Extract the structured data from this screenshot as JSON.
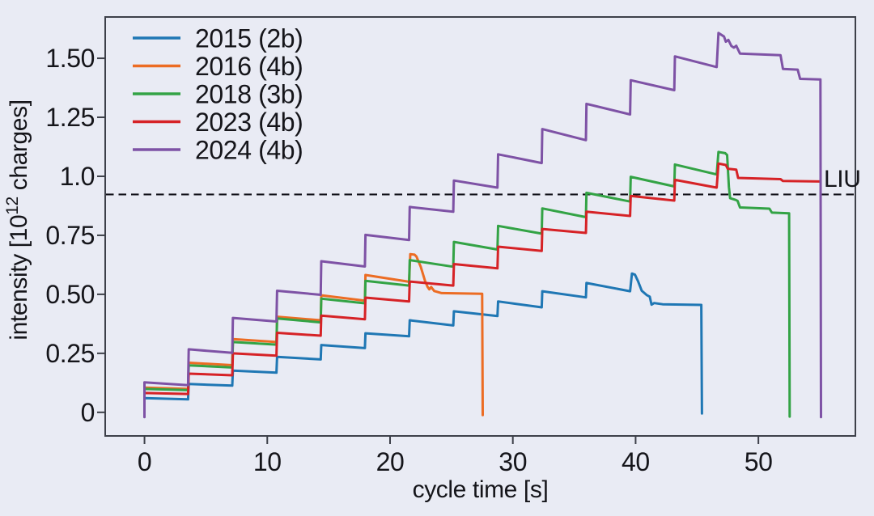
{
  "figure": {
    "background_color": "#e9ebf4",
    "spine_color": "#3d4049",
    "text_color": "#15151a"
  },
  "chart_data": {
    "type": "line",
    "title": "",
    "xlabel": "cycle time [s]",
    "ylabel_prefix": "intensity [10",
    "ylabel_superscript": "12",
    "ylabel_suffix": " charges]",
    "xlim": [
      -3.2,
      57.9
    ],
    "ylim": [
      -0.1,
      1.675
    ],
    "grid": false,
    "legend_position": "upper-left",
    "xticks": [
      {
        "v": 0,
        "label": "0"
      },
      {
        "v": 10,
        "label": "10"
      },
      {
        "v": 20,
        "label": "20"
      },
      {
        "v": 30,
        "label": "30"
      },
      {
        "v": 40,
        "label": "40"
      },
      {
        "v": 50,
        "label": "50"
      }
    ],
    "yticks": [
      {
        "v": 0.0,
        "label": "0"
      },
      {
        "v": 0.25,
        "label": "0.25"
      },
      {
        "v": 0.5,
        "label": "0.50"
      },
      {
        "v": 0.75,
        "label": "0.75"
      },
      {
        "v": 1.0,
        "label": "1.0"
      },
      {
        "v": 1.25,
        "label": "1.25"
      },
      {
        "v": 1.5,
        "label": "1.50"
      }
    ],
    "annotation": {
      "label": "LIU",
      "y": 0.923,
      "style": "dashed",
      "color": "#111118"
    },
    "series": [
      {
        "name": "2015 (2b)",
        "color": "#1f77b4",
        "points": [
          [
            0,
            -0.005
          ],
          [
            0,
            0.06
          ],
          [
            3.55,
            0.055
          ],
          [
            3.6,
            0.12
          ],
          [
            7.15,
            0.113
          ],
          [
            7.2,
            0.177
          ],
          [
            10.75,
            0.168
          ],
          [
            10.8,
            0.235
          ],
          [
            14.35,
            0.224
          ],
          [
            14.4,
            0.285
          ],
          [
            17.95,
            0.272
          ],
          [
            18.0,
            0.335
          ],
          [
            21.55,
            0.322
          ],
          [
            21.6,
            0.39
          ],
          [
            25.15,
            0.368
          ],
          [
            25.2,
            0.428
          ],
          [
            28.75,
            0.408
          ],
          [
            28.8,
            0.47
          ],
          [
            32.35,
            0.445
          ],
          [
            32.4,
            0.513
          ],
          [
            35.95,
            0.487
          ],
          [
            36.0,
            0.548
          ],
          [
            39.55,
            0.513
          ],
          [
            39.7,
            0.588
          ],
          [
            39.95,
            0.583
          ],
          [
            40.2,
            0.555
          ],
          [
            40.5,
            0.515
          ],
          [
            40.9,
            0.497
          ],
          [
            41.15,
            0.49
          ],
          [
            41.3,
            0.456
          ],
          [
            41.5,
            0.463
          ],
          [
            42.2,
            0.458
          ],
          [
            45.35,
            0.455
          ],
          [
            45.4,
            -0.005
          ]
        ]
      },
      {
        "name": "2016 (4b)",
        "color": "#ec6c23",
        "points": [
          [
            0,
            -0.005
          ],
          [
            0,
            0.105
          ],
          [
            3.55,
            0.099
          ],
          [
            3.6,
            0.21
          ],
          [
            7.15,
            0.2
          ],
          [
            7.2,
            0.31
          ],
          [
            10.75,
            0.298
          ],
          [
            10.8,
            0.405
          ],
          [
            14.35,
            0.39
          ],
          [
            14.4,
            0.496
          ],
          [
            17.95,
            0.473
          ],
          [
            18.0,
            0.582
          ],
          [
            21.55,
            0.553
          ],
          [
            21.65,
            0.67
          ],
          [
            22.0,
            0.668
          ],
          [
            22.15,
            0.66
          ],
          [
            22.5,
            0.617
          ],
          [
            22.85,
            0.557
          ],
          [
            23.05,
            0.532
          ],
          [
            23.2,
            0.521
          ],
          [
            23.35,
            0.531
          ],
          [
            23.6,
            0.514
          ],
          [
            24.2,
            0.505
          ],
          [
            27.5,
            0.502
          ],
          [
            27.55,
            -0.012
          ]
        ]
      },
      {
        "name": "2018 (3b)",
        "color": "#33a345",
        "points": [
          [
            0,
            -0.015
          ],
          [
            0,
            0.099
          ],
          [
            3.55,
            0.094
          ],
          [
            3.6,
            0.199
          ],
          [
            7.15,
            0.19
          ],
          [
            7.2,
            0.298
          ],
          [
            10.75,
            0.287
          ],
          [
            10.8,
            0.398
          ],
          [
            14.35,
            0.381
          ],
          [
            14.4,
            0.482
          ],
          [
            17.95,
            0.462
          ],
          [
            18.0,
            0.557
          ],
          [
            21.55,
            0.537
          ],
          [
            21.6,
            0.645
          ],
          [
            25.15,
            0.617
          ],
          [
            25.2,
            0.722
          ],
          [
            28.75,
            0.69
          ],
          [
            28.8,
            0.79
          ],
          [
            32.35,
            0.757
          ],
          [
            32.4,
            0.864
          ],
          [
            35.95,
            0.827
          ],
          [
            36.0,
            0.93
          ],
          [
            39.55,
            0.893
          ],
          [
            39.6,
            0.998
          ],
          [
            43.15,
            0.957
          ],
          [
            43.2,
            1.05
          ],
          [
            46.6,
            1.008
          ],
          [
            46.75,
            1.103
          ],
          [
            47.3,
            1.098
          ],
          [
            47.45,
            1.09
          ],
          [
            47.6,
            0.955
          ],
          [
            47.7,
            0.907
          ],
          [
            48.15,
            0.9
          ],
          [
            48.3,
            0.896
          ],
          [
            48.5,
            0.868
          ],
          [
            50.9,
            0.863
          ],
          [
            51.1,
            0.846
          ],
          [
            52.5,
            0.843
          ],
          [
            52.55,
            -0.018
          ]
        ]
      },
      {
        "name": "2023 (4b)",
        "color": "#d62226",
        "points": [
          [
            0,
            -0.005
          ],
          [
            0,
            0.082
          ],
          [
            3.55,
            0.078
          ],
          [
            3.6,
            0.164
          ],
          [
            7.15,
            0.157
          ],
          [
            7.2,
            0.25
          ],
          [
            10.75,
            0.24
          ],
          [
            10.8,
            0.337
          ],
          [
            14.35,
            0.325
          ],
          [
            14.4,
            0.41
          ],
          [
            17.95,
            0.394
          ],
          [
            18.0,
            0.486
          ],
          [
            21.55,
            0.47
          ],
          [
            21.6,
            0.554
          ],
          [
            25.15,
            0.537
          ],
          [
            25.2,
            0.628
          ],
          [
            28.75,
            0.61
          ],
          [
            28.8,
            0.702
          ],
          [
            32.35,
            0.684
          ],
          [
            32.4,
            0.777
          ],
          [
            35.95,
            0.76
          ],
          [
            36.0,
            0.85
          ],
          [
            39.55,
            0.832
          ],
          [
            39.6,
            0.917
          ],
          [
            43.15,
            0.897
          ],
          [
            43.2,
            0.985
          ],
          [
            46.6,
            0.952
          ],
          [
            46.75,
            1.054
          ],
          [
            47.35,
            1.048
          ],
          [
            47.5,
            1.032
          ],
          [
            48.2,
            1.028
          ],
          [
            48.35,
            0.993
          ],
          [
            51.8,
            0.988
          ],
          [
            52.0,
            0.98
          ],
          [
            55.0,
            0.978
          ]
        ]
      },
      {
        "name": "2024 (4b)",
        "color": "#7e52a5",
        "points": [
          [
            0,
            -0.02
          ],
          [
            0,
            0.127
          ],
          [
            3.55,
            0.115
          ],
          [
            3.6,
            0.267
          ],
          [
            7.15,
            0.252
          ],
          [
            7.2,
            0.4
          ],
          [
            10.75,
            0.385
          ],
          [
            10.8,
            0.515
          ],
          [
            14.35,
            0.498
          ],
          [
            14.4,
            0.64
          ],
          [
            17.95,
            0.618
          ],
          [
            18.0,
            0.752
          ],
          [
            21.55,
            0.73
          ],
          [
            21.6,
            0.87
          ],
          [
            25.15,
            0.85
          ],
          [
            25.2,
            0.982
          ],
          [
            28.75,
            0.952
          ],
          [
            28.8,
            1.093
          ],
          [
            32.35,
            1.056
          ],
          [
            32.4,
            1.2
          ],
          [
            35.95,
            1.153
          ],
          [
            36.0,
            1.307
          ],
          [
            39.55,
            1.262
          ],
          [
            39.6,
            1.407
          ],
          [
            43.15,
            1.365
          ],
          [
            43.2,
            1.508
          ],
          [
            46.6,
            1.463
          ],
          [
            46.75,
            1.607
          ],
          [
            47.2,
            1.592
          ],
          [
            47.35,
            1.57
          ],
          [
            47.55,
            1.578
          ],
          [
            47.8,
            1.552
          ],
          [
            48.0,
            1.545
          ],
          [
            48.2,
            1.553
          ],
          [
            48.5,
            1.52
          ],
          [
            51.8,
            1.513
          ],
          [
            52.0,
            1.455
          ],
          [
            53.2,
            1.452
          ],
          [
            53.4,
            1.413
          ],
          [
            55.05,
            1.41
          ],
          [
            55.1,
            -0.02
          ]
        ]
      }
    ]
  }
}
